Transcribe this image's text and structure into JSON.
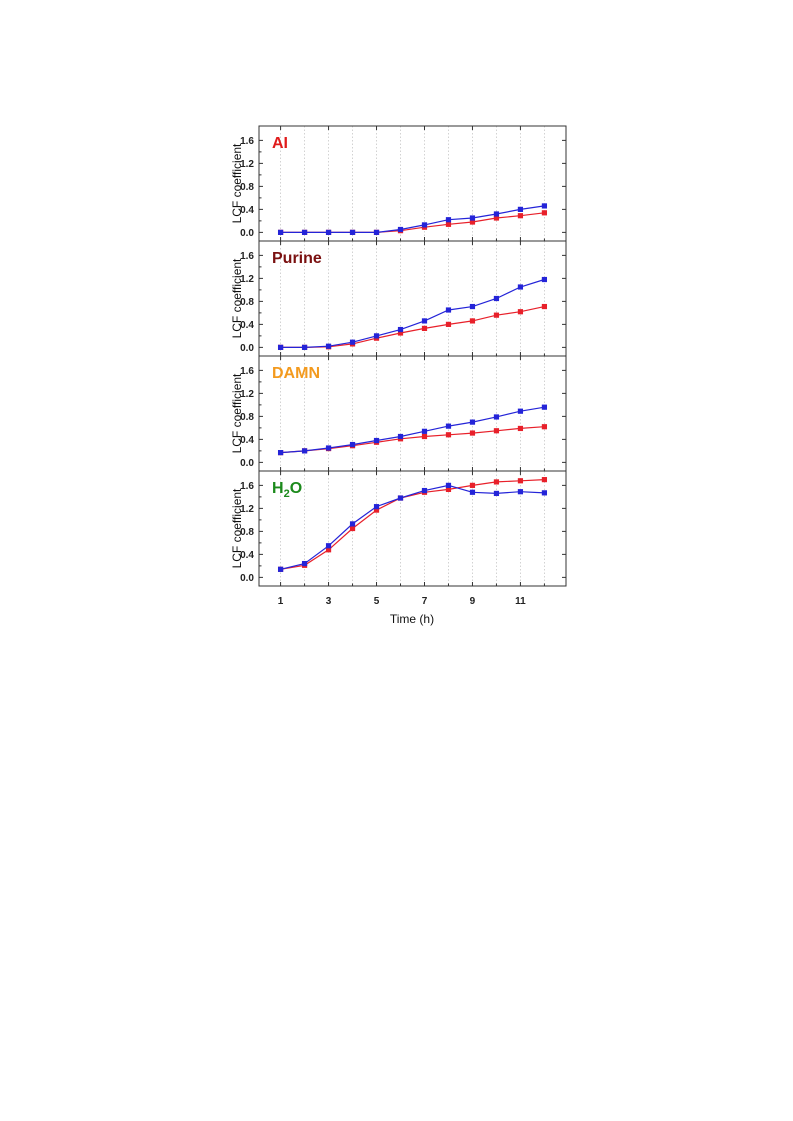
{
  "chart_data": {
    "type": "line",
    "xlabel": "Time (h)",
    "ylabel": "LCF coefficient",
    "x": [
      1,
      2,
      3,
      4,
      5,
      6,
      7,
      8,
      9,
      10,
      11,
      12
    ],
    "xlim": [
      0.1,
      12.9
    ],
    "ylim": [
      -0.15,
      1.85
    ],
    "x_ticks": [
      1,
      3,
      5,
      7,
      9,
      11
    ],
    "x_minor_ticks": [
      2,
      4,
      6,
      8,
      10,
      12
    ],
    "y_ticks": [
      0.0,
      0.4,
      0.8,
      1.2,
      1.6
    ],
    "x_tick_labels": [
      "1",
      "3",
      "5",
      "7",
      "9",
      "11"
    ],
    "y_tick_labels": [
      "0.0",
      "0.4",
      "0.8",
      "1.2",
      "1.6"
    ],
    "grid": "vertical-dotted",
    "series_colors": [
      "#e8202a",
      "#2424d8"
    ],
    "panels": [
      {
        "title": "AI",
        "title_color": "#e01b1b",
        "series": [
          {
            "values": [
              0.0,
              0.0,
              0.0,
              0.0,
              0.0,
              0.03,
              0.09,
              0.14,
              0.18,
              0.25,
              0.29,
              0.34
            ]
          },
          {
            "values": [
              0.0,
              0.0,
              0.0,
              0.0,
              0.0,
              0.05,
              0.13,
              0.22,
              0.25,
              0.32,
              0.4,
              0.46
            ]
          }
        ]
      },
      {
        "title": "Purine",
        "title_color": "#7a1010",
        "series": [
          {
            "values": [
              0.0,
              0.0,
              0.01,
              0.06,
              0.16,
              0.25,
              0.33,
              0.4,
              0.46,
              0.56,
              0.62,
              0.71
            ]
          },
          {
            "values": [
              0.0,
              0.0,
              0.02,
              0.09,
              0.2,
              0.31,
              0.46,
              0.65,
              0.71,
              0.85,
              1.05,
              1.18
            ]
          }
        ]
      },
      {
        "title": "DAMN",
        "title_color": "#f39a1e",
        "series": [
          {
            "values": [
              0.17,
              0.2,
              0.24,
              0.29,
              0.35,
              0.41,
              0.45,
              0.48,
              0.51,
              0.55,
              0.59,
              0.62
            ]
          },
          {
            "values": [
              0.17,
              0.2,
              0.25,
              0.31,
              0.38,
              0.45,
              0.54,
              0.63,
              0.7,
              0.79,
              0.89,
              0.96
            ]
          }
        ]
      },
      {
        "title": "H",
        "title_sub": "2",
        "title_rest": "O",
        "title_color": "#1c8a1c",
        "series": [
          {
            "values": [
              0.14,
              0.21,
              0.48,
              0.85,
              1.17,
              1.38,
              1.48,
              1.53,
              1.6,
              1.66,
              1.68,
              1.7
            ]
          },
          {
            "values": [
              0.14,
              0.24,
              0.55,
              0.93,
              1.23,
              1.38,
              1.51,
              1.6,
              1.48,
              1.46,
              1.49,
              1.47
            ]
          }
        ]
      }
    ]
  }
}
